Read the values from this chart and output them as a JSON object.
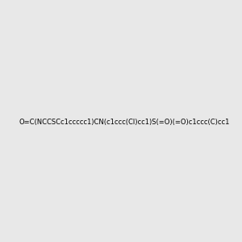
{
  "smiles": "O=C(NCCSCc1ccccc1)CN(c1ccc(Cl)cc1)S(=O)(=O)c1ccc(C)cc1",
  "image_size": 300,
  "background_color": "#e8e8e8",
  "title": ""
}
